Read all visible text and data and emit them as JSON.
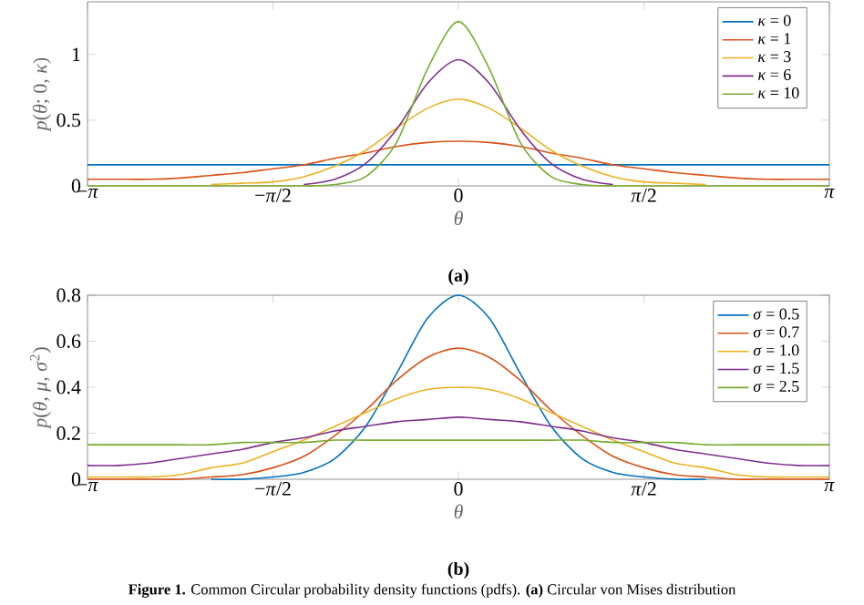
{
  "chart_data": [
    {
      "type": "line",
      "ylabel": "*p*(*θ*; 0, *κ*)",
      "xlabel": "*θ*",
      "annotations": [
        "**(a)**"
      ],
      "x": [
        -3.1416,
        -2.8798,
        -2.618,
        -2.3562,
        -2.0944,
        -1.8326,
        -1.5708,
        -1.309,
        -1.0472,
        -0.7854,
        -0.5236,
        -0.2618,
        0,
        0.2618,
        0.5236,
        0.7854,
        1.0472,
        1.309,
        1.5708,
        1.8326,
        2.0944,
        2.3562,
        2.618,
        2.8798,
        3.1416
      ],
      "xlim": [
        -3.1416,
        3.1416
      ],
      "ylim": [
        0,
        1.4
      ],
      "xticks": [
        {
          "value": -3.1416,
          "label": "−*π*"
        },
        {
          "value": -1.5708,
          "label": "−*π*/2"
        },
        0,
        {
          "value": 1.5708,
          "label": "*π*/2"
        },
        {
          "value": 3.1416,
          "label": "*π*"
        }
      ],
      "yticks": [
        0,
        0.5,
        1
      ],
      "legend": "top right",
      "marker": "none",
      "series": [
        {
          "name": "*κ* = 0",
          "color": "#0072bd",
          "values": [
            0.16,
            0.16,
            0.16,
            0.16,
            0.16,
            0.16,
            0.16,
            0.16,
            0.16,
            0.16,
            0.16,
            0.16,
            0.16,
            0.16,
            0.16,
            0.16,
            0.16,
            0.16,
            0.16,
            0.16,
            0.16,
            0.16,
            0.16,
            0.16,
            0.16
          ]
        },
        {
          "name": "*κ* = 1",
          "color": "#d95319",
          "values": [
            0.05,
            0.05,
            0.05,
            0.06,
            0.08,
            0.1,
            0.13,
            0.16,
            0.21,
            0.25,
            0.3,
            0.33,
            0.34,
            0.33,
            0.3,
            0.25,
            0.21,
            0.16,
            0.13,
            0.1,
            0.08,
            0.06,
            0.05,
            0.05,
            0.05
          ]
        },
        {
          "name": "*κ* = 3",
          "color": "#edb120",
          "values": [
            null,
            null,
            null,
            null,
            0.01,
            0.02,
            0.03,
            0.07,
            0.15,
            0.27,
            0.44,
            0.59,
            0.66,
            0.59,
            0.44,
            0.27,
            0.15,
            0.07,
            0.03,
            0.02,
            0.01,
            null,
            null,
            null,
            null
          ]
        },
        {
          "name": "*κ* = 6",
          "color": "#7e2f8e",
          "values": [
            null,
            null,
            null,
            null,
            null,
            null,
            null,
            0.01,
            0.05,
            0.17,
            0.43,
            0.78,
            0.96,
            0.78,
            0.43,
            0.17,
            0.05,
            0.01,
            null,
            null,
            null,
            null,
            null,
            null,
            null
          ]
        },
        {
          "name": "*κ* = 10",
          "color": "#77ac30",
          "values": [
            0,
            0,
            0,
            0,
            0,
            0,
            0,
            0,
            0.01,
            0.07,
            0.33,
            0.89,
            1.25,
            0.89,
            0.33,
            0.07,
            0.01,
            0,
            0,
            0,
            0,
            0,
            0,
            0,
            0
          ]
        }
      ]
    },
    {
      "type": "line",
      "ylabel": "*p*(*θ*, *μ*, *σ*$^{2}$)",
      "xlabel": "*θ*",
      "annotations": [
        "**(b)**",
        "**Figure 1.** Common Circular probability density functions (pdfs). **(a)** Circular von Mises distribution"
      ],
      "x": [
        -3.1416,
        -2.8798,
        -2.618,
        -2.3562,
        -2.0944,
        -1.8326,
        -1.5708,
        -1.309,
        -1.0472,
        -0.7854,
        -0.5236,
        -0.2618,
        0,
        0.2618,
        0.5236,
        0.7854,
        1.0472,
        1.309,
        1.5708,
        1.8326,
        2.0944,
        2.3562,
        2.618,
        2.8798,
        3.1416
      ],
      "xlim": [
        -3.1416,
        3.1416
      ],
      "ylim": [
        0,
        0.8
      ],
      "xticks": [
        {
          "value": -3.1416,
          "label": "−*π*"
        },
        {
          "value": -1.5708,
          "label": "−*π*/2"
        },
        0,
        {
          "value": 1.5708,
          "label": "*π*/2"
        },
        {
          "value": 3.1416,
          "label": "*π*"
        }
      ],
      "yticks": [
        0,
        0.2,
        0.4,
        0.6,
        0.8
      ],
      "legend": "top right",
      "marker": "none",
      "series": [
        {
          "name": "*σ* = 0.5",
          "color": "#0072bd",
          "values": [
            null,
            null,
            null,
            null,
            0,
            0,
            0.01,
            0.03,
            0.09,
            0.23,
            0.46,
            0.7,
            0.8,
            0.7,
            0.46,
            0.23,
            0.09,
            0.03,
            0.01,
            0,
            0,
            null,
            null,
            null,
            null
          ]
        },
        {
          "name": "*σ* = 0.7",
          "color": "#d95319",
          "values": [
            0,
            0,
            0,
            0,
            0.01,
            0.02,
            0.05,
            0.1,
            0.19,
            0.3,
            0.43,
            0.53,
            0.57,
            0.53,
            0.43,
            0.3,
            0.19,
            0.1,
            0.05,
            0.02,
            0.01,
            0,
            0,
            0,
            0
          ]
        },
        {
          "name": "*σ* = 1.0",
          "color": "#edb120",
          "values": [
            0.01,
            0.01,
            0.01,
            0.02,
            0.05,
            0.07,
            0.12,
            0.17,
            0.23,
            0.29,
            0.35,
            0.39,
            0.4,
            0.39,
            0.35,
            0.29,
            0.23,
            0.17,
            0.12,
            0.07,
            0.05,
            0.02,
            0.01,
            0.01,
            0.01
          ]
        },
        {
          "name": "*σ* = 1.5",
          "color": "#7e2f8e",
          "values": [
            0.06,
            0.06,
            0.07,
            0.09,
            0.11,
            0.13,
            0.16,
            0.18,
            0.21,
            0.23,
            0.25,
            0.26,
            0.27,
            0.26,
            0.25,
            0.23,
            0.21,
            0.18,
            0.16,
            0.13,
            0.11,
            0.09,
            0.07,
            0.06,
            0.06
          ]
        },
        {
          "name": "*σ* = 2.5",
          "color": "#77ac30",
          "values": [
            0.15,
            0.15,
            0.15,
            0.15,
            0.15,
            0.16,
            0.16,
            0.16,
            0.17,
            0.17,
            0.17,
            0.17,
            0.17,
            0.17,
            0.17,
            0.17,
            0.17,
            0.16,
            0.16,
            0.16,
            0.15,
            0.15,
            0.15,
            0.15,
            0.15
          ]
        }
      ]
    }
  ]
}
